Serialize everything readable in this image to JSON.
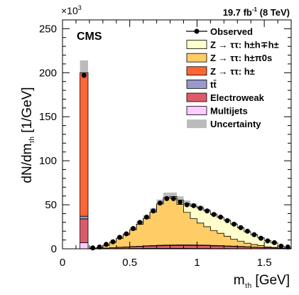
{
  "chart_data": {
    "type": "bar",
    "stacked": true,
    "lumi_label": "19.7 fb",
    "lumi_sup": "-1",
    "lumi_energy": " (8 TeV)",
    "experiment_label": "CMS",
    "multiplier_prefix": "×10",
    "multiplier_sup": "3",
    "ylabel_main": "dN/dm",
    "ylabel_sub": "τh",
    "ylabel_unit": " [1/GeV]",
    "xlabel_main": "m",
    "xlabel_sub": "τh",
    "xlabel_unit": " [GeV]",
    "xlim": [
      0,
      1.7
    ],
    "ylim": [
      0,
      260
    ],
    "x_ticks": [
      {
        "value": 0,
        "label": "0"
      },
      {
        "value": 0.5,
        "label": "0.5"
      },
      {
        "value": 1.0,
        "label": "1"
      },
      {
        "value": 1.5,
        "label": "1.5"
      }
    ],
    "y_ticks": [
      {
        "value": 0,
        "label": "0"
      },
      {
        "value": 50,
        "label": "50"
      },
      {
        "value": 100,
        "label": "100"
      },
      {
        "value": 150,
        "label": "150"
      },
      {
        "value": 200,
        "label": "200"
      },
      {
        "value": 250,
        "label": "250"
      }
    ],
    "grid": false,
    "legend_position": "top-right",
    "legend": [
      {
        "key": "observed",
        "label": "Observed",
        "style": "marker"
      },
      {
        "key": "zhhh",
        "label": "Z → ττ: h±h∓h±",
        "style": "box",
        "color": "#ffffcc"
      },
      {
        "key": "zhpi0",
        "label": "Z → ττ: h±π0s",
        "style": "box",
        "color": "#ffcc66"
      },
      {
        "key": "zh",
        "label": "Z → ττ: h±",
        "style": "box",
        "color": "#ff6633"
      },
      {
        "key": "ttbar",
        "label": "tt̄",
        "style": "box",
        "color": "#9999cc"
      },
      {
        "key": "ewk",
        "label": "Electroweak",
        "style": "box",
        "color": "#de5a6a"
      },
      {
        "key": "qcd",
        "label": "Multijets",
        "style": "box",
        "color": "#ffccff"
      },
      {
        "key": "unc",
        "label": "Uncertainty",
        "style": "box",
        "color": "#bbbbbb"
      }
    ],
    "single_prong_bin": {
      "x": [
        0.13,
        0.19
      ],
      "multijets": 7,
      "electroweak": 27,
      "ttbar": 3,
      "z_h": 163,
      "uncertainty": [
        199,
        214
      ],
      "observed": 197
    },
    "bin_edges": [
      0.2,
      0.25,
      0.3,
      0.35,
      0.4,
      0.45,
      0.5,
      0.55,
      0.6,
      0.65,
      0.7,
      0.75,
      0.8,
      0.85,
      0.9,
      0.95,
      1.0,
      1.05,
      1.1,
      1.15,
      1.2,
      1.25,
      1.3,
      1.35,
      1.4,
      1.45,
      1.5,
      1.55,
      1.6,
      1.65,
      1.7
    ],
    "stack_components": {
      "multijets": [
        0,
        0,
        0.1,
        0.2,
        0.3,
        0.3,
        0.4,
        0.4,
        0.5,
        0.5,
        0.5,
        0.5,
        0.5,
        0.5,
        0.5,
        0.4,
        0.4,
        0.4,
        0.3,
        0.3,
        0.3,
        0.2,
        0.2,
        0.2,
        0.1,
        0.1,
        0.1,
        0.1,
        0,
        0
      ],
      "electroweak": [
        0.1,
        0.3,
        0.6,
        1,
        1.3,
        1.6,
        1.9,
        2.2,
        2.5,
        2.8,
        3,
        3.2,
        3.3,
        3.4,
        3.4,
        3.4,
        3.3,
        3.2,
        3,
        2.8,
        2.6,
        2.4,
        2.1,
        1.8,
        1.5,
        1.2,
        1,
        0.8,
        0.5,
        0.3
      ],
      "ttbar": [
        0,
        0,
        0.1,
        0.1,
        0.2,
        0.2,
        0.3,
        0.3,
        0.4,
        0.4,
        0.5,
        0.5,
        0.5,
        0.5,
        0.5,
        0.5,
        0.5,
        0.5,
        0.5,
        0.5,
        0.4,
        0.4,
        0.4,
        0.3,
        0.3,
        0.3,
        0.2,
        0.2,
        0.1,
        0.1
      ],
      "z_h_pi0": [
        0.5,
        1,
        3,
        6,
        10,
        14,
        19,
        25,
        31,
        38,
        47,
        54,
        53,
        46,
        37,
        30,
        25,
        21,
        17,
        14,
        11,
        8,
        6,
        4,
        3,
        2,
        1,
        0.5,
        0.2,
        0.1
      ],
      "z_h_h_h": [
        0,
        0,
        0,
        0,
        0,
        0,
        0,
        0,
        0,
        0,
        0,
        0,
        2,
        5,
        10,
        14,
        17,
        18,
        18,
        18,
        18,
        17,
        15,
        13,
        11,
        9,
        7,
        5,
        2,
        1
      ]
    },
    "uncertainty_band": {
      "low": [
        0.6,
        1.3,
        3.8,
        7.3,
        11.8,
        16.1,
        21.6,
        28,
        34.4,
        41.7,
        50.6,
        57.8,
        58.3,
        54.2,
        50.1,
        47.1,
        44.8,
        41.7,
        37.5,
        34.2,
        30.9,
        26.7,
        22.8,
        18.8,
        15.1,
        11.8,
        8.5,
        6.1,
        2.8,
        1.5
      ],
      "high": [
        0.8,
        1.5,
        4.4,
        8.3,
        13.4,
        18.2,
        24.4,
        31.4,
        38.2,
        46.3,
        56,
        63.8,
        63.9,
        59.6,
        54.9,
        51.5,
        48.9,
        45.3,
        40.7,
        37.3,
        33.5,
        29.3,
        24.9,
        20.8,
        16.7,
        13.2,
        9.5,
        6.9,
        3.2,
        1.7
      ]
    },
    "observed": {
      "x": [
        0.225,
        0.275,
        0.325,
        0.375,
        0.425,
        0.475,
        0.525,
        0.575,
        0.625,
        0.675,
        0.725,
        0.775,
        0.825,
        0.875,
        0.925,
        0.975,
        1.025,
        1.075,
        1.125,
        1.175,
        1.225,
        1.275,
        1.325,
        1.375,
        1.425,
        1.475,
        1.525,
        1.575,
        1.625,
        1.675
      ],
      "y": [
        1,
        2,
        5,
        8,
        13,
        17,
        23,
        30,
        36,
        43,
        52,
        57,
        57,
        53,
        50,
        49,
        46,
        43,
        39,
        36,
        32,
        28,
        24,
        20,
        16,
        12,
        9,
        7,
        3,
        2
      ]
    }
  }
}
